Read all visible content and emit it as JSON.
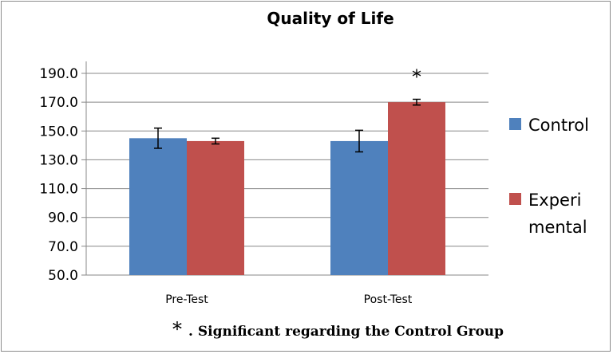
{
  "chart_data": {
    "type": "bar",
    "title": "Quality of Life",
    "categories": [
      "Pre-Test",
      "Post-Test"
    ],
    "series": [
      {
        "name": "Control",
        "color": "#4f81bd",
        "values": [
          145.0,
          143.0
        ],
        "errors": [
          7.0,
          7.5
        ]
      },
      {
        "name": "Experimental",
        "legend_lines": [
          "Experi",
          "mental"
        ],
        "color": "#c0504d",
        "values": [
          143.0,
          170.0
        ],
        "errors": [
          2.0,
          2.0
        ]
      }
    ],
    "ylim": [
      50.0,
      190.0
    ],
    "yticks": [
      "190.0",
      "170.0",
      "150.0",
      "130.0",
      "110.0",
      "90.0",
      "70.0",
      "50.0"
    ],
    "grid": true,
    "legend_position": "right",
    "significance_marker": {
      "text": "*",
      "category": "Post-Test",
      "series": "Experimental"
    },
    "footnote": {
      "marker": "*",
      "text": ". Significant regarding the Control Group"
    }
  }
}
